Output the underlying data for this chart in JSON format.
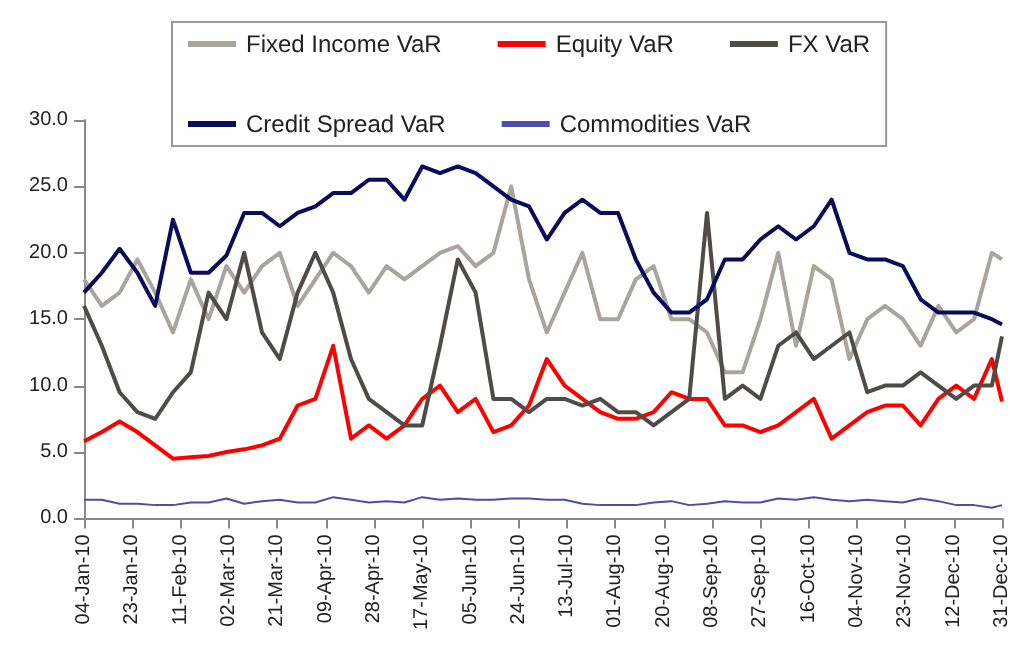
{
  "chart_data": {
    "type": "line",
    "x": [
      "2010-01-04",
      "2010-01-11",
      "2010-01-18",
      "2010-01-25",
      "2010-02-01",
      "2010-02-08",
      "2010-02-15",
      "2010-02-22",
      "2010-03-01",
      "2010-03-08",
      "2010-03-15",
      "2010-03-22",
      "2010-03-29",
      "2010-04-05",
      "2010-04-12",
      "2010-04-19",
      "2010-04-26",
      "2010-05-03",
      "2010-05-10",
      "2010-05-17",
      "2010-05-24",
      "2010-05-31",
      "2010-06-07",
      "2010-06-14",
      "2010-06-21",
      "2010-06-28",
      "2010-07-05",
      "2010-07-12",
      "2010-07-19",
      "2010-07-26",
      "2010-08-02",
      "2010-08-09",
      "2010-08-16",
      "2010-08-23",
      "2010-08-30",
      "2010-09-06",
      "2010-09-13",
      "2010-09-20",
      "2010-09-27",
      "2010-10-04",
      "2010-10-11",
      "2010-10-18",
      "2010-10-25",
      "2010-11-01",
      "2010-11-08",
      "2010-11-15",
      "2010-11-22",
      "2010-11-29",
      "2010-12-06",
      "2010-12-13",
      "2010-12-20",
      "2010-12-27",
      "2010-12-31"
    ],
    "series": [
      {
        "name": "Fixed Income VaR",
        "color": "#aaa49f",
        "values": [
          18,
          16,
          17,
          19.5,
          17,
          14,
          18,
          15,
          19,
          17,
          19,
          20,
          16,
          18,
          20,
          19,
          17,
          19,
          18,
          19,
          20,
          20.5,
          19,
          20,
          25,
          18,
          14,
          17,
          20,
          15,
          15,
          18,
          19,
          15,
          15,
          14,
          11,
          11,
          15,
          20,
          13,
          19,
          18,
          12,
          15,
          16,
          15,
          13,
          16,
          14,
          15,
          20,
          19.5
        ]
      },
      {
        "name": "Equity VaR",
        "color": "#ff0000",
        "values": [
          5.8,
          6.5,
          7.3,
          6.5,
          5.5,
          4.5,
          4.6,
          4.7,
          5,
          5.2,
          5.5,
          6,
          8.5,
          9,
          13,
          6,
          7,
          6,
          7,
          9,
          10,
          8,
          9,
          6.5,
          7,
          8.5,
          12,
          10,
          9,
          8,
          7.5,
          7.5,
          8,
          9.5,
          9,
          9,
          7,
          7,
          6.5,
          7,
          8,
          9,
          6,
          7,
          8,
          8.5,
          8.5,
          7,
          9,
          10,
          9,
          12,
          8.8
        ]
      },
      {
        "name": "FX VaR",
        "color": "#4f4b49",
        "values": [
          16,
          13,
          9.5,
          8,
          7.5,
          9.5,
          11,
          17,
          15,
          20,
          14,
          12,
          17,
          20,
          17,
          12,
          9,
          8,
          7,
          7,
          13,
          19.5,
          17,
          9,
          9,
          8,
          9,
          9,
          8.5,
          9,
          8,
          8,
          7,
          8,
          9,
          23,
          9,
          10,
          9,
          13,
          14,
          12,
          13,
          14,
          9.5,
          10,
          10,
          11,
          10,
          9,
          10,
          10,
          13.7
        ]
      },
      {
        "name": "Credit Spread VaR",
        "color": "#0b0b5c",
        "values": [
          17,
          18.5,
          20.3,
          18.5,
          16,
          22.5,
          18.5,
          18.5,
          19.8,
          23,
          23,
          22,
          23,
          23.5,
          24.5,
          24.5,
          25.5,
          25.5,
          24,
          26.5,
          26,
          26.5,
          26,
          25,
          24,
          23.5,
          21,
          23,
          24,
          23,
          23,
          19.5,
          17,
          15.5,
          15.5,
          16.5,
          19.5,
          19.5,
          21,
          22,
          21,
          22,
          24,
          20,
          19.5,
          19.5,
          19,
          16.5,
          15.5,
          15.5,
          15.5,
          15,
          14.6
        ]
      },
      {
        "name": "Commodities VaR",
        "color": "#4b4bb0",
        "values": [
          1.4,
          1.4,
          1.1,
          1.1,
          1,
          1,
          1.2,
          1.2,
          1.5,
          1.1,
          1.3,
          1.4,
          1.2,
          1.2,
          1.6,
          1.4,
          1.2,
          1.3,
          1.2,
          1.6,
          1.4,
          1.5,
          1.4,
          1.4,
          1.5,
          1.5,
          1.4,
          1.4,
          1.1,
          1,
          1,
          1,
          1.2,
          1.3,
          1,
          1.1,
          1.3,
          1.2,
          1.2,
          1.5,
          1.4,
          1.6,
          1.4,
          1.3,
          1.4,
          1.3,
          1.2,
          1.5,
          1.3,
          1,
          1,
          0.8,
          1
        ]
      }
    ],
    "xlim": [
      "2010-01-04",
      "2010-12-31"
    ],
    "xticks": [
      {
        "value": "2010-01-04",
        "label": "04-Jan-10"
      },
      {
        "value": "2010-01-23",
        "label": "23-Jan-10"
      },
      {
        "value": "2010-02-11",
        "label": "11-Feb-10"
      },
      {
        "value": "2010-03-02",
        "label": "02-Mar-10"
      },
      {
        "value": "2010-03-21",
        "label": "21-Mar-10"
      },
      {
        "value": "2010-04-09",
        "label": "09-Apr-10"
      },
      {
        "value": "2010-04-28",
        "label": "28-Apr-10"
      },
      {
        "value": "2010-05-17",
        "label": "17-May-10"
      },
      {
        "value": "2010-06-05",
        "label": "05-Jun-10"
      },
      {
        "value": "2010-06-24",
        "label": "24-Jun-10"
      },
      {
        "value": "2010-07-13",
        "label": "13-Jul-10"
      },
      {
        "value": "2010-08-01",
        "label": "01-Aug-10"
      },
      {
        "value": "2010-08-20",
        "label": "20-Aug-10"
      },
      {
        "value": "2010-09-08",
        "label": "08-Sep-10"
      },
      {
        "value": "2010-09-27",
        "label": "27-Sep-10"
      },
      {
        "value": "2010-10-16",
        "label": "16-Oct-10"
      },
      {
        "value": "2010-11-04",
        "label": "04-Nov-10"
      },
      {
        "value": "2010-11-23",
        "label": "23-Nov-10"
      },
      {
        "value": "2010-12-12",
        "label": "12-Dec-10"
      },
      {
        "value": "2010-12-31",
        "label": "31-Dec-10"
      }
    ],
    "ylim": [
      0,
      30
    ],
    "yticks": [
      {
        "value": 0,
        "label": "0.0"
      },
      {
        "value": 5,
        "label": "5.0"
      },
      {
        "value": 10,
        "label": "10.0"
      },
      {
        "value": 15,
        "label": "15.0"
      },
      {
        "value": 20,
        "label": "20.0"
      },
      {
        "value": 25,
        "label": "25.0"
      },
      {
        "value": 30,
        "label": "30.0"
      }
    ],
    "grid": false,
    "legend": "top",
    "marker": "none",
    "line_style": "solid"
  }
}
